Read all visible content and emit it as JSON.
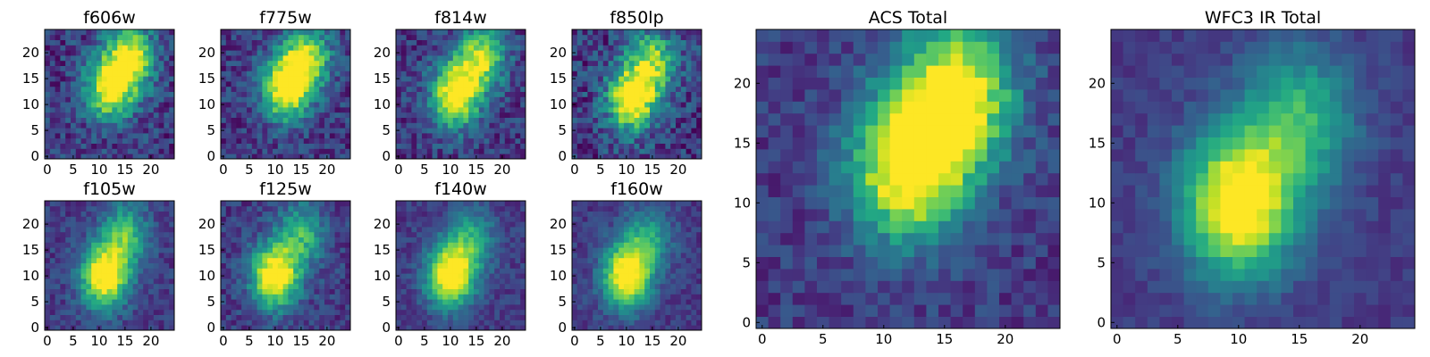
{
  "figure": {
    "description": "Image cutouts of a galaxy in individual HST filters and stacked totals"
  },
  "chart_data": [
    {
      "type": "heatmap",
      "title": "f606w",
      "xticks": [
        0,
        5,
        10,
        15,
        20
      ],
      "yticks": [
        0,
        5,
        10,
        15,
        20
      ],
      "xlim": [
        -0.5,
        24.5
      ],
      "ylim": [
        -0.5,
        24.5
      ],
      "grid": 25,
      "colormap": "viridis",
      "peaks": [
        [
          12,
          13,
          0.9
        ],
        [
          16,
          19,
          0.85
        ]
      ],
      "noise": 0.22
    },
    {
      "type": "heatmap",
      "title": "f775w",
      "xticks": [
        0,
        5,
        10,
        15,
        20
      ],
      "yticks": [
        0,
        5,
        10,
        15,
        20
      ],
      "xlim": [
        -0.5,
        24.5
      ],
      "ylim": [
        -0.5,
        24.5
      ],
      "grid": 25,
      "colormap": "viridis",
      "peaks": [
        [
          12,
          13,
          0.95
        ],
        [
          16,
          19,
          0.8
        ]
      ],
      "noise": 0.2
    },
    {
      "type": "heatmap",
      "title": "f814w",
      "xticks": [
        0,
        5,
        10,
        15,
        20
      ],
      "yticks": [
        0,
        5,
        10,
        15,
        20
      ],
      "xlim": [
        -0.5,
        24.5
      ],
      "ylim": [
        -0.5,
        24.5
      ],
      "grid": 25,
      "colormap": "viridis",
      "peaks": [
        [
          11,
          12,
          1.0
        ],
        [
          16,
          19,
          0.75
        ]
      ],
      "noise": 0.2
    },
    {
      "type": "heatmap",
      "title": "f850lp",
      "xticks": [
        0,
        5,
        10,
        15,
        20
      ],
      "yticks": [
        0,
        5,
        10,
        15,
        20
      ],
      "xlim": [
        -0.5,
        24.5
      ],
      "ylim": [
        -0.5,
        24.5
      ],
      "grid": 25,
      "colormap": "viridis",
      "peaks": [
        [
          11,
          11,
          1.0
        ],
        [
          15,
          18,
          0.7
        ]
      ],
      "noise": 0.24
    },
    {
      "type": "heatmap",
      "title": "f105w",
      "xticks": [
        0,
        5,
        10,
        15,
        20
      ],
      "yticks": [
        0,
        5,
        10,
        15,
        20
      ],
      "xlim": [
        -0.5,
        24.5
      ],
      "ylim": [
        -0.5,
        24.5
      ],
      "grid": 25,
      "colormap": "viridis",
      "peaks": [
        [
          11,
          10,
          1.0
        ],
        [
          15,
          18,
          0.55
        ]
      ],
      "noise": 0.14
    },
    {
      "type": "heatmap",
      "title": "f125w",
      "xticks": [
        0,
        5,
        10,
        15,
        20
      ],
      "yticks": [
        0,
        5,
        10,
        15,
        20
      ],
      "xlim": [
        -0.5,
        24.5
      ],
      "ylim": [
        -0.5,
        24.5
      ],
      "grid": 25,
      "colormap": "viridis",
      "peaks": [
        [
          10,
          10,
          1.0
        ],
        [
          15,
          18,
          0.5
        ]
      ],
      "noise": 0.16
    },
    {
      "type": "heatmap",
      "title": "f140w",
      "xticks": [
        0,
        5,
        10,
        15,
        20
      ],
      "yticks": [
        0,
        5,
        10,
        15,
        20
      ],
      "xlim": [
        -0.5,
        24.5
      ],
      "ylim": [
        -0.5,
        24.5
      ],
      "grid": 25,
      "colormap": "viridis",
      "peaks": [
        [
          10,
          10,
          1.0
        ],
        [
          14,
          17,
          0.45
        ]
      ],
      "noise": 0.12
    },
    {
      "type": "heatmap",
      "title": "f160w",
      "xticks": [
        0,
        5,
        10,
        15,
        20
      ],
      "yticks": [
        0,
        5,
        10,
        15,
        20
      ],
      "xlim": [
        -0.5,
        24.5
      ],
      "ylim": [
        -0.5,
        24.5
      ],
      "grid": 25,
      "colormap": "viridis",
      "peaks": [
        [
          10,
          10,
          1.0
        ],
        [
          14,
          17,
          0.45
        ]
      ],
      "noise": 0.12
    },
    {
      "type": "heatmap",
      "title": "ACS Total",
      "xticks": [
        0,
        5,
        10,
        15,
        20
      ],
      "yticks": [
        0,
        5,
        10,
        15,
        20
      ],
      "xlim": [
        -0.5,
        24.5
      ],
      "ylim": [
        -0.5,
        24.5
      ],
      "grid": 25,
      "colormap": "viridis",
      "peaks": [
        [
          12,
          13,
          1.0
        ],
        [
          16,
          19,
          0.95
        ]
      ],
      "noise": 0.14
    },
    {
      "type": "heatmap",
      "title": "WFC3 IR Total",
      "xticks": [
        0,
        5,
        10,
        15,
        20
      ],
      "yticks": [
        0,
        5,
        10,
        15,
        20
      ],
      "xlim": [
        -0.5,
        24.5
      ],
      "ylim": [
        -0.5,
        24.5
      ],
      "grid": 25,
      "colormap": "viridis",
      "peaks": [
        [
          10,
          10,
          1.0
        ],
        [
          15,
          17,
          0.5
        ]
      ],
      "noise": 0.08
    }
  ]
}
